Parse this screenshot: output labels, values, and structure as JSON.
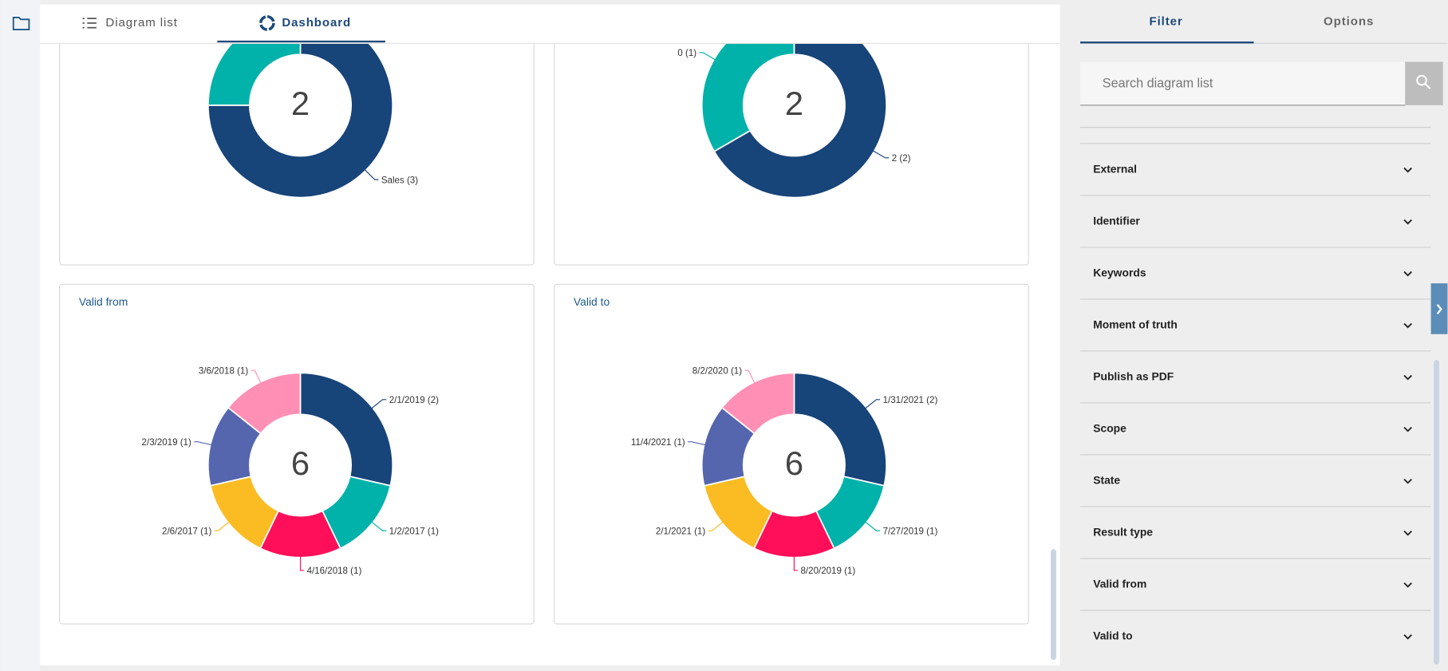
{
  "tabs": [
    "Diagram list",
    "Dashboard"
  ],
  "sidebar": {
    "tabs": [
      "Filter",
      "Options"
    ],
    "search_placeholder": "Search diagram list",
    "filters": [
      "External",
      "Identifier",
      "Keywords",
      "Moment of truth",
      "Publish as PDF",
      "Scope",
      "State",
      "Result type",
      "Valid from",
      "Valid to"
    ]
  },
  "chart_data": [
    {
      "type": "donut",
      "center_label": 2,
      "categories": [
        "Sales (3)",
        null
      ],
      "values": [
        3,
        1
      ],
      "colors": [
        "#174479",
        "#00b2a9"
      ]
    },
    {
      "type": "donut",
      "center_label": 2,
      "categories": [
        "2 (2)",
        "0 (1)"
      ],
      "values": [
        2,
        1
      ],
      "colors": [
        "#174479",
        "#00b2a9"
      ]
    },
    {
      "type": "donut",
      "title": "Valid from",
      "center_label": 6,
      "categories": [
        "2/1/2019 (2)",
        "1/2/2017 (1)",
        "4/16/2018 (1)",
        "2/6/2017 (1)",
        "2/3/2019 (1)",
        "3/6/2018 (1)"
      ],
      "values": [
        2,
        1,
        1,
        1,
        1,
        1
      ],
      "colors": [
        "#174479",
        "#00b2a9",
        "#ff0f5a",
        "#fbbc23",
        "#5566ae",
        "#ff8fb5"
      ]
    },
    {
      "type": "donut",
      "title": "Valid to",
      "center_label": 6,
      "categories": [
        "1/31/2021 (2)",
        "7/27/2019 (1)",
        "8/20/2019 (1)",
        "2/1/2021 (1)",
        "11/4/2021 (1)",
        "8/2/2020 (1)"
      ],
      "values": [
        2,
        1,
        1,
        1,
        1,
        1
      ],
      "colors": [
        "#174479",
        "#00b2a9",
        "#ff0f5a",
        "#fbbc23",
        "#5566ae",
        "#ff8fb5"
      ]
    }
  ]
}
